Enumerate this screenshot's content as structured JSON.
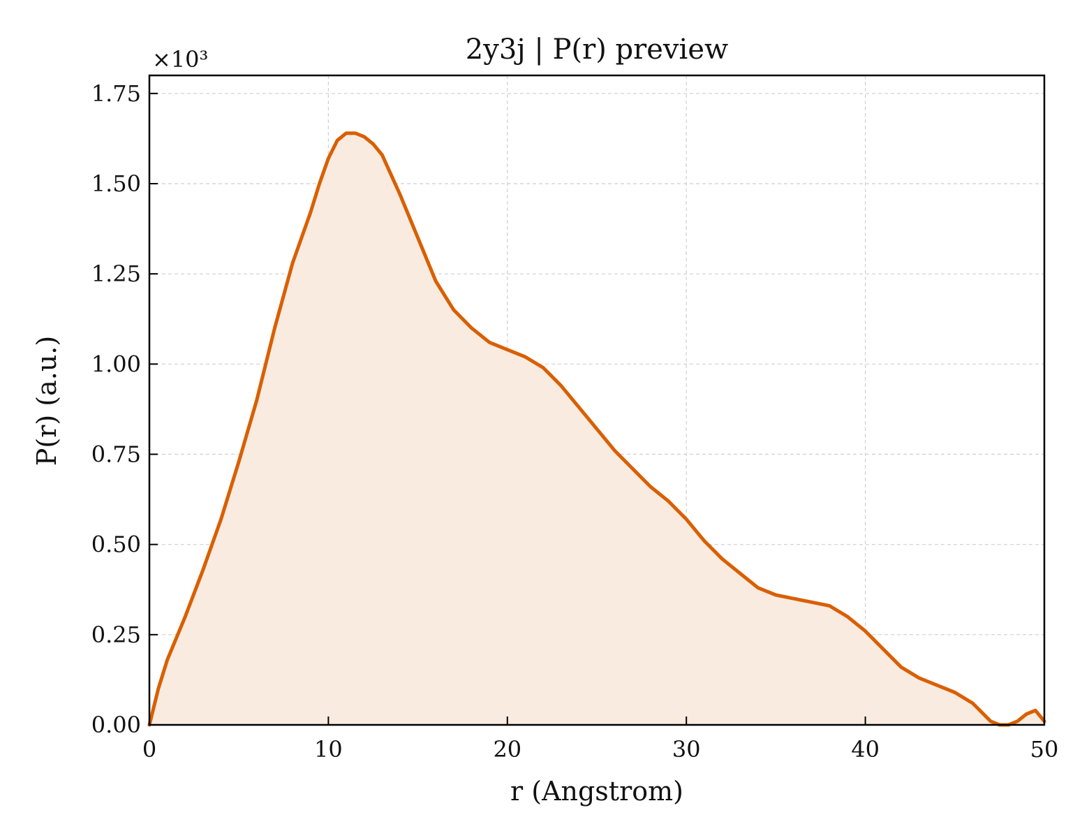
{
  "chart_data": {
    "type": "area",
    "title": "2y3j | P(r) preview",
    "xlabel": "r (Angstrom)",
    "ylabel": "P(r) (a.u.)",
    "y_multiplier_label": "×10³",
    "xlim": [
      0,
      50
    ],
    "ylim": [
      0,
      1.8
    ],
    "xticks": [
      0,
      10,
      20,
      30,
      40,
      50
    ],
    "xtick_labels": [
      "0",
      "10",
      "20",
      "30",
      "40",
      "50"
    ],
    "yticks": [
      0,
      0.25,
      0.5,
      0.75,
      1.0,
      1.25,
      1.5,
      1.75
    ],
    "ytick_labels": [
      "0.00",
      "0.25",
      "0.50",
      "0.75",
      "1.00",
      "1.25",
      "1.50",
      "1.75"
    ],
    "grid": true,
    "colors": {
      "line": "#d95f02",
      "fill": "#f9ebe0"
    },
    "series": [
      {
        "x": [
          0,
          0.5,
          1,
          2,
          3,
          4,
          5,
          6,
          7,
          8,
          9,
          9.5,
          10,
          10.5,
          11,
          11.5,
          12,
          12.5,
          13,
          14,
          15,
          16,
          17,
          18,
          19,
          20,
          21,
          22,
          23,
          24,
          25,
          26,
          27,
          28,
          29,
          30,
          31,
          32,
          33,
          34,
          35,
          36,
          37,
          38,
          39,
          40,
          41,
          42,
          43,
          44,
          45,
          46,
          47,
          47.5,
          48,
          48.5,
          49,
          49.5,
          50
        ],
        "y": [
          0.0,
          0.1,
          0.18,
          0.3,
          0.43,
          0.57,
          0.73,
          0.9,
          1.1,
          1.28,
          1.42,
          1.5,
          1.57,
          1.62,
          1.64,
          1.64,
          1.63,
          1.61,
          1.58,
          1.47,
          1.35,
          1.23,
          1.15,
          1.1,
          1.06,
          1.04,
          1.02,
          0.99,
          0.94,
          0.88,
          0.82,
          0.76,
          0.71,
          0.66,
          0.62,
          0.57,
          0.51,
          0.46,
          0.42,
          0.38,
          0.36,
          0.35,
          0.34,
          0.33,
          0.3,
          0.26,
          0.21,
          0.16,
          0.13,
          0.11,
          0.09,
          0.06,
          0.01,
          0.0,
          0.0,
          0.01,
          0.03,
          0.04,
          0.01
        ]
      }
    ]
  }
}
